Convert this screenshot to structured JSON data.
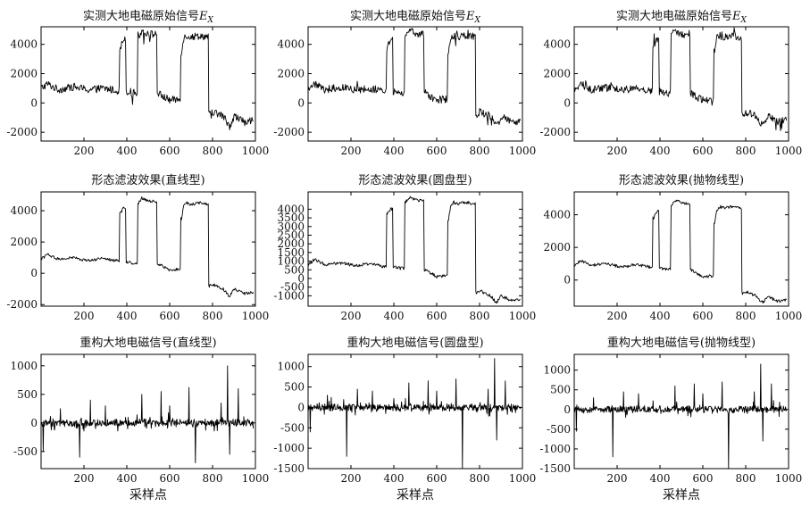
{
  "chart_data": [
    {
      "type": "line",
      "row": 0,
      "col": 0,
      "title_main": "实测大地电磁原始信号",
      "title_var": "E",
      "title_sub": "X",
      "xlabel": "",
      "xlim": [
        0,
        1000
      ],
      "ylim": [
        -2600,
        5200
      ],
      "xticks": [
        200,
        400,
        600,
        800,
        1000
      ],
      "yticks": [
        -2000,
        0,
        2000,
        4000
      ],
      "shape": "raw",
      "x": [
        0,
        30,
        80,
        150,
        220,
        290,
        350,
        370,
        385,
        400,
        430,
        455,
        470,
        510,
        545,
        560,
        600,
        640,
        655,
        665,
        680,
        700,
        740,
        780,
        785,
        800,
        850,
        880,
        900,
        950,
        990
      ],
      "y": [
        1000,
        1300,
        900,
        1100,
        900,
        1000,
        850,
        3700,
        4400,
        800,
        700,
        4600,
        4900,
        4700,
        700,
        500,
        200,
        250,
        3500,
        4400,
        4600,
        4500,
        4600,
        4500,
        -800,
        -600,
        -900,
        -1600,
        -900,
        -1300,
        -1200
      ]
    },
    {
      "type": "line",
      "row": 0,
      "col": 1,
      "title_main": "实测大地电磁原始信号",
      "title_var": "E",
      "title_sub": "X",
      "xlabel": "",
      "xlim": [
        0,
        1000
      ],
      "ylim": [
        -2600,
        5200
      ],
      "xticks": [
        200,
        400,
        600,
        800,
        1000
      ],
      "yticks": [
        -2000,
        0,
        2000,
        4000
      ],
      "shape": "raw",
      "x": [
        0,
        30,
        80,
        150,
        220,
        290,
        350,
        370,
        385,
        400,
        430,
        455,
        470,
        510,
        545,
        560,
        600,
        640,
        655,
        665,
        680,
        700,
        740,
        780,
        785,
        800,
        850,
        880,
        900,
        950,
        990
      ],
      "y": [
        1000,
        1300,
        900,
        1100,
        900,
        1000,
        850,
        3700,
        4400,
        800,
        700,
        4600,
        4900,
        4700,
        700,
        500,
        200,
        250,
        3500,
        4400,
        4600,
        4500,
        4600,
        4500,
        -800,
        -600,
        -900,
        -1600,
        -900,
        -1300,
        -1200
      ]
    },
    {
      "type": "line",
      "row": 0,
      "col": 2,
      "title_main": "实测大地电磁原始信号",
      "title_var": "E",
      "title_sub": "X",
      "xlabel": "",
      "xlim": [
        0,
        1000
      ],
      "ylim": [
        -2600,
        5200
      ],
      "xticks": [
        200,
        400,
        600,
        800,
        1000
      ],
      "yticks": [
        -2000,
        0,
        2000,
        4000
      ],
      "shape": "raw",
      "x": [
        0,
        30,
        80,
        150,
        220,
        290,
        350,
        370,
        385,
        400,
        430,
        455,
        470,
        510,
        545,
        560,
        600,
        640,
        655,
        665,
        680,
        700,
        740,
        780,
        785,
        800,
        850,
        880,
        900,
        950,
        990
      ],
      "y": [
        1000,
        1300,
        900,
        1100,
        900,
        1000,
        850,
        3700,
        4400,
        800,
        700,
        4600,
        4900,
        4700,
        700,
        500,
        200,
        250,
        3500,
        4400,
        4600,
        4500,
        4600,
        4500,
        -800,
        -600,
        -900,
        -1600,
        -900,
        -1300,
        -1200
      ]
    },
    {
      "type": "line",
      "row": 1,
      "col": 0,
      "title_main": "形态滤波效果(直线型)",
      "title_var": "",
      "title_sub": "",
      "xlabel": "",
      "xlim": [
        0,
        1000
      ],
      "ylim": [
        -2100,
        5200
      ],
      "xticks": [
        200,
        400,
        600,
        800,
        1000
      ],
      "yticks": [
        -2000,
        0,
        2000,
        4000
      ],
      "shape": "filtered",
      "x": [
        0,
        30,
        80,
        150,
        220,
        290,
        350,
        370,
        385,
        400,
        430,
        455,
        470,
        510,
        545,
        560,
        600,
        640,
        655,
        665,
        680,
        700,
        740,
        780,
        785,
        800,
        850,
        880,
        900,
        950,
        990
      ],
      "y": [
        900,
        1200,
        900,
        1000,
        800,
        950,
        800,
        3800,
        4200,
        700,
        650,
        4500,
        4800,
        4600,
        600,
        500,
        200,
        250,
        3500,
        4300,
        4500,
        4400,
        4500,
        4400,
        -800,
        -700,
        -1000,
        -1500,
        -1000,
        -1300,
        -1200
      ]
    },
    {
      "type": "line",
      "row": 1,
      "col": 1,
      "title_main": "形态滤波效果(圆盘型)",
      "title_var": "",
      "title_sub": "",
      "xlabel": "",
      "xlim": [
        0,
        1000
      ],
      "ylim": [
        -1600,
        5000
      ],
      "xticks": [
        200,
        400,
        600,
        800,
        1000
      ],
      "yticks": [
        -1000,
        -500,
        0,
        500,
        1000,
        1500,
        2000,
        2500,
        3000,
        3500,
        4000
      ],
      "shape": "filtered",
      "x": [
        0,
        30,
        80,
        150,
        220,
        290,
        350,
        370,
        385,
        400,
        430,
        455,
        470,
        510,
        545,
        560,
        600,
        640,
        655,
        665,
        680,
        700,
        740,
        780,
        785,
        800,
        850,
        880,
        900,
        950,
        990
      ],
      "y": [
        800,
        1100,
        800,
        900,
        750,
        850,
        700,
        3800,
        4000,
        700,
        600,
        4400,
        4700,
        4500,
        500,
        400,
        100,
        150,
        3400,
        4200,
        4400,
        4300,
        4400,
        4300,
        -800,
        -700,
        -1000,
        -1400,
        -1000,
        -1300,
        -1200
      ]
    },
    {
      "type": "line",
      "row": 1,
      "col": 2,
      "title_main": "形态滤波效果(抛物线型)",
      "title_var": "",
      "title_sub": "",
      "xlabel": "",
      "xlim": [
        0,
        1000
      ],
      "ylim": [
        -1600,
        5400
      ],
      "xticks": [
        200,
        400,
        600,
        800,
        1000
      ],
      "yticks": [
        0,
        2000,
        4000
      ],
      "shape": "filtered",
      "x": [
        0,
        30,
        80,
        150,
        220,
        290,
        350,
        370,
        385,
        400,
        430,
        455,
        470,
        510,
        545,
        560,
        600,
        640,
        655,
        665,
        680,
        700,
        740,
        780,
        785,
        800,
        850,
        880,
        900,
        950,
        990
      ],
      "y": [
        900,
        1200,
        900,
        1000,
        800,
        950,
        800,
        3800,
        4200,
        700,
        650,
        4600,
        4900,
        4700,
        600,
        500,
        200,
        250,
        3500,
        4300,
        4500,
        4400,
        4500,
        4400,
        -800,
        -700,
        -1000,
        -1400,
        -1000,
        -1300,
        -1200
      ]
    },
    {
      "type": "line",
      "row": 2,
      "col": 0,
      "title_main": "重构大地电磁信号(直线型)",
      "title_var": "",
      "title_sub": "",
      "xlabel": "采样点",
      "xlim": [
        0,
        1000
      ],
      "ylim": [
        -800,
        1200
      ],
      "xticks": [
        200,
        400,
        600,
        800,
        1000
      ],
      "yticks": [
        -500,
        0,
        500,
        1000
      ],
      "shape": "noise",
      "spikes_x": [
        10,
        90,
        165,
        180,
        230,
        300,
        385,
        470,
        560,
        600,
        690,
        720,
        840,
        870,
        880,
        920
      ],
      "spikes_y": [
        -500,
        250,
        1000,
        -600,
        400,
        300,
        380,
        500,
        550,
        300,
        620,
        -700,
        350,
        1000,
        -550,
        600
      ]
    },
    {
      "type": "line",
      "row": 2,
      "col": 1,
      "title_main": "重构大地电磁信号(圆盘型)",
      "title_var": "",
      "title_sub": "",
      "xlabel": "采样点",
      "xlim": [
        0,
        1000
      ],
      "ylim": [
        -1500,
        1300
      ],
      "xticks": [
        200,
        400,
        600,
        800,
        1000
      ],
      "yticks": [
        -1500,
        -1000,
        -500,
        0,
        500,
        1000
      ],
      "shape": "noise",
      "spikes_x": [
        10,
        90,
        165,
        180,
        230,
        300,
        385,
        470,
        560,
        600,
        690,
        720,
        840,
        870,
        880,
        920
      ],
      "spikes_y": [
        -600,
        300,
        1300,
        -1200,
        450,
        400,
        500,
        600,
        650,
        400,
        700,
        -1500,
        450,
        1200,
        -800,
        650
      ]
    },
    {
      "type": "line",
      "row": 2,
      "col": 2,
      "title_main": "重构大地电磁信号(抛物线型)",
      "title_var": "",
      "title_sub": "",
      "xlabel": "采样点",
      "xlim": [
        0,
        1000
      ],
      "ylim": [
        -1500,
        1400
      ],
      "xticks": [
        200,
        400,
        600,
        800,
        1000
      ],
      "yticks": [
        -1500,
        -1000,
        -500,
        0,
        500,
        1000
      ],
      "shape": "noise",
      "spikes_x": [
        10,
        90,
        165,
        180,
        230,
        300,
        385,
        470,
        560,
        600,
        690,
        720,
        840,
        870,
        880,
        920
      ],
      "spikes_y": [
        -550,
        300,
        1250,
        -1200,
        450,
        400,
        500,
        600,
        650,
        400,
        700,
        -1500,
        450,
        1150,
        -800,
        650
      ]
    }
  ]
}
